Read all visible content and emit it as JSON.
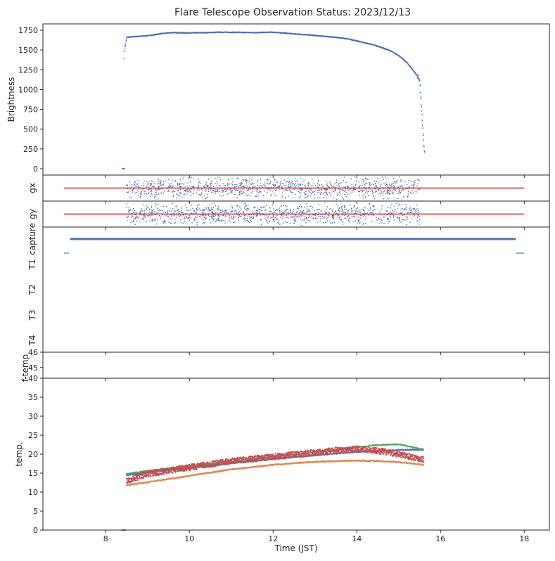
{
  "title": "Flare Telescope Observation Status: 2023/12/13",
  "chart_data": [
    {
      "panel": "brightness",
      "type": "scatter",
      "ylabel": "Brightness",
      "ylim": [
        -80,
        1830
      ],
      "yticks": [
        0,
        250,
        500,
        750,
        1000,
        1250,
        1500,
        1750
      ],
      "series": [
        {
          "color": "#4c72b0",
          "x": [
            8.43,
            8.45,
            8.5,
            8.7,
            9.0,
            9.3,
            9.6,
            10.0,
            10.4,
            10.8,
            11.2,
            11.6,
            12.0,
            12.3,
            12.6,
            12.9,
            13.2,
            13.5,
            13.8,
            14.0,
            14.2,
            14.4,
            14.6,
            14.8,
            15.0,
            15.2,
            15.35,
            15.45,
            15.5,
            15.52,
            15.54,
            15.56,
            15.58,
            15.6,
            15.62
          ],
          "y": [
            0,
            1480,
            1660,
            1670,
            1680,
            1705,
            1720,
            1715,
            1720,
            1725,
            1722,
            1720,
            1725,
            1712,
            1700,
            1688,
            1675,
            1660,
            1640,
            1615,
            1590,
            1565,
            1530,
            1490,
            1430,
            1340,
            1240,
            1170,
            1130,
            1000,
            800,
            650,
            480,
            300,
            170
          ]
        }
      ]
    },
    {
      "panel": "gx",
      "type": "scatter",
      "ylabel": "gx",
      "series": [
        {
          "color": "#4c72b0",
          "x_range": [
            8.5,
            15.5
          ],
          "points": 1000,
          "center": 0,
          "spread": 1
        },
        {
          "color": "#d62728",
          "type": "line",
          "x": [
            7.0,
            18.0
          ],
          "y": [
            0,
            0
          ]
        }
      ]
    },
    {
      "panel": "gy",
      "type": "scatter",
      "ylabel": "gy",
      "series": [
        {
          "color": "#4c72b0",
          "x_range": [
            8.5,
            15.5
          ],
          "points": 1000,
          "center": 0,
          "spread": 1
        },
        {
          "color": "#d62728",
          "type": "line",
          "x": [
            7.0,
            18.0
          ],
          "y": [
            0,
            0
          ]
        }
      ]
    },
    {
      "panel": "status",
      "type": "line",
      "yticklabels": [
        "capture",
        "T1",
        "T2",
        "T3",
        "T4"
      ],
      "series": [
        {
          "color": "#4c72b0",
          "x": [
            7.15,
            17.8
          ],
          "y": [
            "capture",
            "capture"
          ]
        },
        {
          "color": "#2a6f6f",
          "x": [
            7.0,
            7.12
          ],
          "y": [
            "T1",
            "T1"
          ]
        },
        {
          "color": "#2a6f6f",
          "x": [
            17.8,
            18.0
          ],
          "y": [
            "T1",
            "T1"
          ]
        }
      ]
    },
    {
      "panel": "f-temp",
      "type": "line",
      "ylabel": "f-temp",
      "ylim": [
        44.3,
        46
      ],
      "yticks": [
        45,
        46
      ],
      "series": []
    },
    {
      "panel": "temp",
      "type": "scatter",
      "xlabel": "Time (JST)",
      "ylabel": "temp.",
      "xlim": [
        6.5,
        18.6
      ],
      "xticks": [
        8,
        10,
        12,
        14,
        16,
        18
      ],
      "ylim": [
        0,
        40
      ],
      "yticks": [
        0,
        5,
        10,
        15,
        20,
        25,
        30,
        35,
        40
      ],
      "series": [
        {
          "color": "#4c72b0",
          "x": [
            8.5,
            9.0,
            10.0,
            11.0,
            12.0,
            13.0,
            14.0,
            14.5,
            15.0,
            15.6
          ],
          "y": [
            14.5,
            15.2,
            16.4,
            17.6,
            18.7,
            19.7,
            20.6,
            20.9,
            21.1,
            21.2
          ]
        },
        {
          "color": "#dd8452",
          "x": [
            8.5,
            9.0,
            10.0,
            11.0,
            12.0,
            13.0,
            14.0,
            14.5,
            15.0,
            15.6
          ],
          "y": [
            11.8,
            12.6,
            14.3,
            16.0,
            17.2,
            18.0,
            18.3,
            18.2,
            17.9,
            17.2
          ]
        },
        {
          "color": "#55a868",
          "x": [
            8.5,
            9.0,
            10.0,
            11.0,
            12.0,
            13.0,
            14.0,
            14.5,
            15.0,
            15.6
          ],
          "y": [
            14.8,
            15.6,
            16.9,
            18.0,
            19.3,
            20.5,
            21.8,
            22.4,
            22.6,
            21.2
          ]
        },
        {
          "color": "#c44e52",
          "x": [
            8.5,
            9.0,
            10.0,
            11.0,
            12.0,
            13.0,
            13.5,
            14.0,
            14.5,
            15.0,
            15.6
          ],
          "y": [
            13.0,
            14.8,
            16.5,
            18.2,
            19.3,
            20.4,
            21.0,
            21.4,
            20.9,
            20.0,
            18.6
          ]
        }
      ]
    }
  ]
}
